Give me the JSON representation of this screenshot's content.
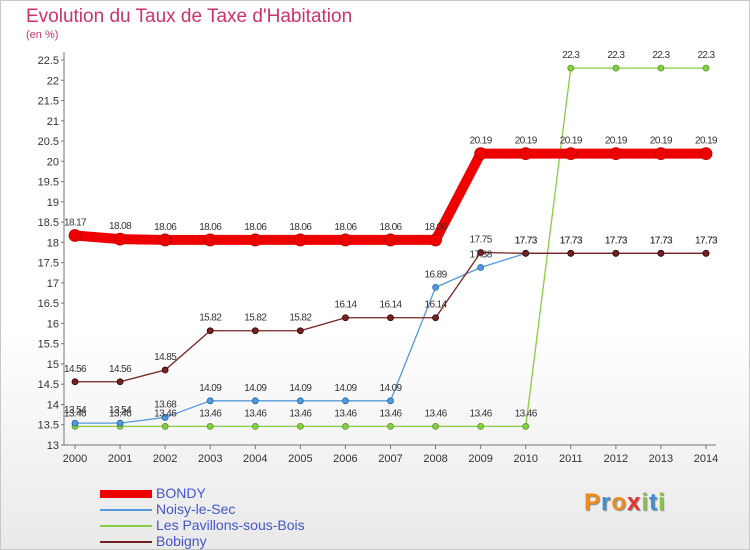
{
  "chart_data": {
    "type": "line",
    "title": "Evolution du Taux de Taxe d'Habitation",
    "ylabel": "(en %)",
    "xlabel": "",
    "x": [
      "2000",
      "2001",
      "2002",
      "2003",
      "2004",
      "2005",
      "2006",
      "2007",
      "2008",
      "2009",
      "2010",
      "2011",
      "2012",
      "2013",
      "2014"
    ],
    "ylim": [
      13,
      22.5
    ],
    "yticks": [
      13,
      13.5,
      14,
      14.5,
      15,
      15.5,
      16,
      16.5,
      17,
      17.5,
      18,
      18.5,
      19,
      19.5,
      20,
      20.5,
      21,
      21.5,
      22,
      22.5
    ],
    "grid": false,
    "legend_position": "bottom-left",
    "series": [
      {
        "name": "BONDY",
        "color": "#ee0000",
        "values": [
          18.17,
          18.08,
          18.06,
          18.06,
          18.06,
          18.06,
          18.06,
          18.06,
          18.06,
          20.19,
          20.19,
          20.19,
          20.19,
          20.19,
          20.19
        ],
        "labels": [
          "18.17",
          "18.08",
          "18.06",
          "18.06",
          "18.06",
          "18.06",
          "18.06",
          "18.06",
          "18.06",
          "20.19",
          "20.19",
          "20.19",
          "20.19",
          "20.19",
          "20.19"
        ]
      },
      {
        "name": "Noisy-le-Sec",
        "color": "#5599dd",
        "values": [
          13.54,
          13.54,
          13.68,
          14.09,
          14.09,
          14.09,
          14.09,
          14.09,
          16.89,
          17.38,
          17.73,
          17.73,
          17.73,
          17.73,
          17.73
        ],
        "labels": [
          "13.54",
          "13.54",
          "13.68",
          "14.09",
          "14.09",
          "14.09",
          "14.09",
          "14.09",
          "16.89",
          "17.38",
          "17.73",
          "17.73",
          "17.73",
          "17.73",
          "17.73"
        ]
      },
      {
        "name": "Les Pavillons-sous-Bois",
        "color": "#88cc44",
        "values": [
          13.46,
          13.46,
          13.46,
          13.46,
          13.46,
          13.46,
          13.46,
          13.46,
          13.46,
          13.46,
          13.46,
          22.3,
          22.3,
          22.3,
          22.3
        ],
        "labels": [
          "13.46",
          "13.46",
          "13.46",
          "13.46",
          "13.46",
          "13.46",
          "13.46",
          "13.46",
          "13.46",
          "13.46",
          "13.46",
          "22.3",
          "22.3",
          "22.3",
          "22.3"
        ]
      },
      {
        "name": "Bobigny",
        "color": "#772222",
        "values": [
          14.56,
          14.56,
          14.85,
          15.82,
          15.82,
          15.82,
          16.14,
          16.14,
          16.14,
          17.75,
          17.73,
          17.73,
          17.73,
          17.73,
          17.73
        ],
        "labels": [
          "14.56",
          "14.56",
          "14.85",
          "15.82",
          "15.82",
          "15.82",
          "16.14",
          "16.14",
          "16.14",
          "17.75",
          "17.73",
          "17.73",
          "17.73",
          "17.73",
          "17.73"
        ]
      }
    ]
  },
  "branding": {
    "logo_text": "Proxiti"
  }
}
